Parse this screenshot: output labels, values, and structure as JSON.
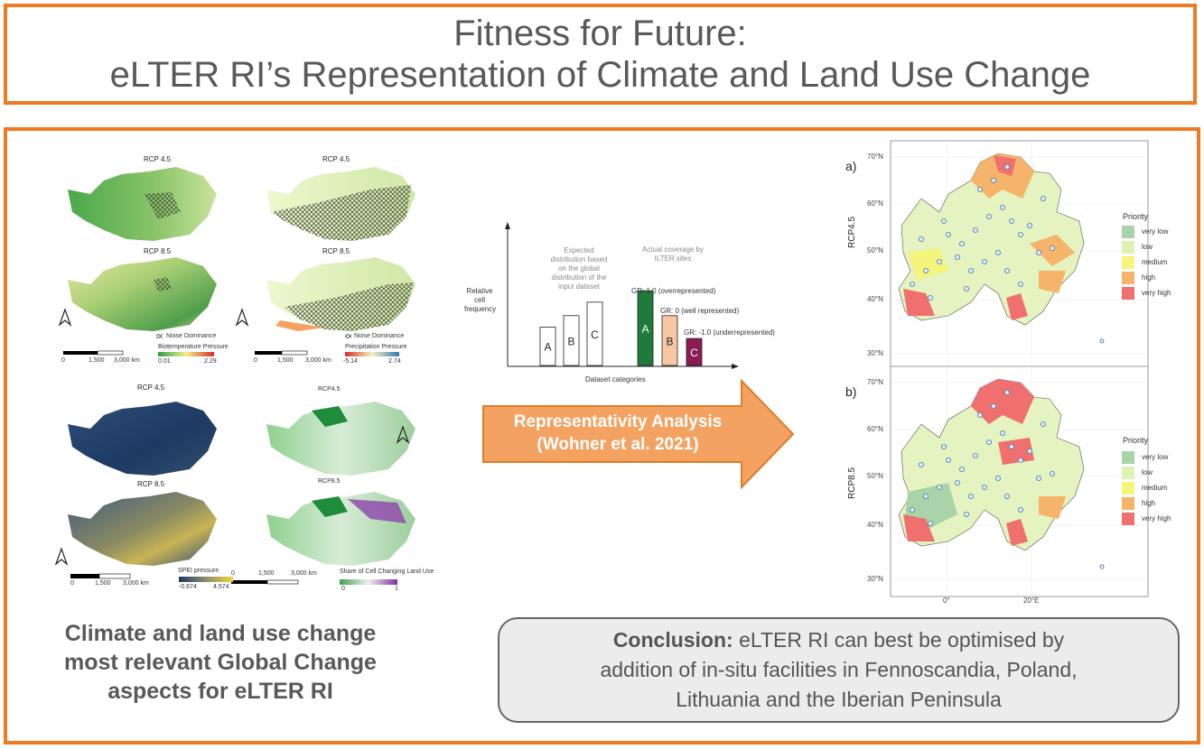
{
  "header": {
    "title_line1": "Fitness for Future:",
    "title_line2": "eLTER RI’s Representation of Climate and Land Use Change"
  },
  "left_maps": {
    "top_left": {
      "title_a": "RCP 4.5",
      "title_b": "RCP 8.5",
      "noise_label": "Noise Dominance",
      "legend_title": "Biotemperature Pressure",
      "legend_min": "0.01",
      "legend_max": "2.29",
      "scale_ticks": [
        "0",
        "1,500",
        "3,000 km"
      ]
    },
    "top_right": {
      "title_a": "RCP 4.5",
      "title_b": "RCP 8.5",
      "noise_label": "Noise Dominance",
      "legend_title": "Precipitation Pressure",
      "legend_min": "-5.14",
      "legend_max": "2.74",
      "scale_ticks": [
        "0",
        "1,500",
        "3,000 km"
      ]
    },
    "bottom_left": {
      "title_a": "RCP 4.5",
      "title_b": "RCP 8.5",
      "legend_title": "SPEI pressure",
      "legend_min": "-0.674",
      "legend_max": "4.574",
      "scale_ticks": [
        "0",
        "1,500",
        "3,000 km"
      ]
    },
    "bottom_right": {
      "title_a": "RCP4.5",
      "title_b": "RCP8.5",
      "legend_title": "Share of Cell Changing Land Use",
      "legend_min": "0",
      "legend_max": "1",
      "scale_ticks": [
        "0",
        "1,500",
        "3,000 km"
      ]
    },
    "colors": {
      "green": "#6aa84f",
      "light_green": "#dcefb7",
      "navy": "#1f3b63",
      "purple": "#8e44ad"
    }
  },
  "diagram": {
    "ylabel_1": "Relative",
    "ylabel_2": "cell",
    "ylabel_3": "frequency",
    "xlabel": "Dataset categories",
    "expected_1": "Expected",
    "expected_2": "distribution based",
    "expected_3": "on the global",
    "expected_4": "distribution of the",
    "expected_5": "input dataset",
    "actual_1": "Actual coverage by",
    "actual_2": "ILTER sites",
    "gr_a": "GR: 1.0 (overrepresented)",
    "gr_b": "GR: 0 (well represented)",
    "gr_c": "GR: -1.0 (underrepresented)",
    "expected_bars": [
      {
        "label": "A",
        "value": 0.37
      },
      {
        "label": "B",
        "value": 0.48
      },
      {
        "label": "C",
        "value": 0.61
      }
    ],
    "actual_bars": [
      {
        "label": "A",
        "value": 0.72,
        "color": "#1e7b3a"
      },
      {
        "label": "B",
        "value": 0.48,
        "color": "#f7c7a3"
      },
      {
        "label": "C",
        "value": 0.26,
        "color": "#8b1a55"
      }
    ]
  },
  "arrow": {
    "line1": "Representativity Analysis",
    "line2": "(Wohner et al. 2021)",
    "color": "#f4a261"
  },
  "priority_maps": {
    "panel_a": {
      "tag": "a)",
      "ylabel": "RCP4.5"
    },
    "panel_b": {
      "tag": "b)",
      "ylabel": "RCP8.5"
    },
    "lat_ticks": [
      "70°N",
      "60°N",
      "50°N",
      "40°N",
      "30°N"
    ],
    "lon_ticks": [
      "0°",
      "20°E"
    ],
    "legend_title": "Priority",
    "legend": [
      {
        "label": "very low",
        "color": "#a9d3a8"
      },
      {
        "label": "low",
        "color": "#dff2b6"
      },
      {
        "label": "medium",
        "color": "#f4f57a"
      },
      {
        "label": "high",
        "color": "#f6b36a"
      },
      {
        "label": "very high",
        "color": "#f07070"
      }
    ]
  },
  "left_caption": {
    "line1": "Climate and land use change",
    "line2": "most relevant Global Change",
    "line3": "aspects for eLTER RI"
  },
  "conclusion": {
    "bold": "Conclusion:",
    "line1_rest": " eLTER RI can best be optimised by",
    "line2": "addition of in-situ facilities in Fennoscandia, Poland,",
    "line3": "Lithuania and the Iberian Peninsula"
  }
}
